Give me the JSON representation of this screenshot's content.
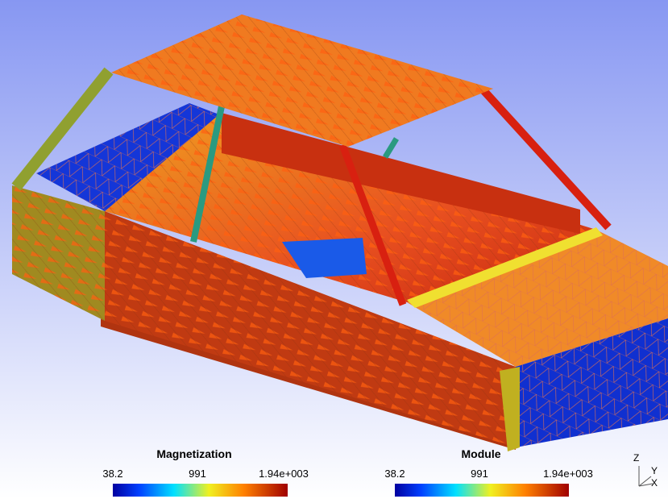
{
  "legends": [
    {
      "title": "Magnetization",
      "labels": [
        "38.2",
        "991",
        "1.94e+003"
      ]
    },
    {
      "title": "Module",
      "labels": [
        "38.2",
        "991",
        "1.94e+003"
      ]
    }
  ],
  "axes_triad": {
    "labels": [
      "Z",
      "Y",
      "X"
    ]
  }
}
